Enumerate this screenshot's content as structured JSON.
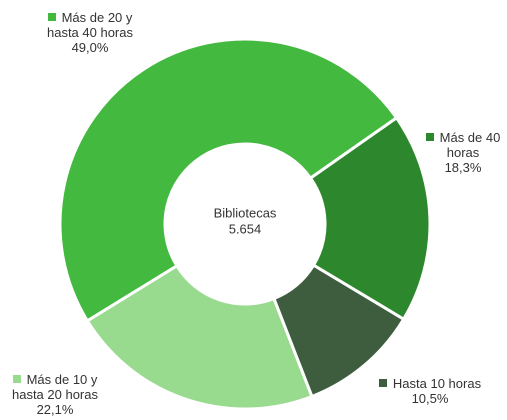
{
  "chart_data": {
    "type": "donut",
    "center_title": "Bibliotecas",
    "center_value": "5.654",
    "categories": [
      "Más de 40 horas",
      "Hasta 10 horas",
      "Más de 10 y hasta 20 horas",
      "Más de 20 y hasta 40 horas"
    ],
    "values": [
      18.3,
      10.5,
      22.1,
      49.0
    ],
    "value_labels": [
      "18,3%",
      "10,5%",
      "22,1%",
      "49,0%"
    ],
    "colors": [
      "#2d882d",
      "#3e5c3e",
      "#98da8e",
      "#43b93f"
    ]
  }
}
